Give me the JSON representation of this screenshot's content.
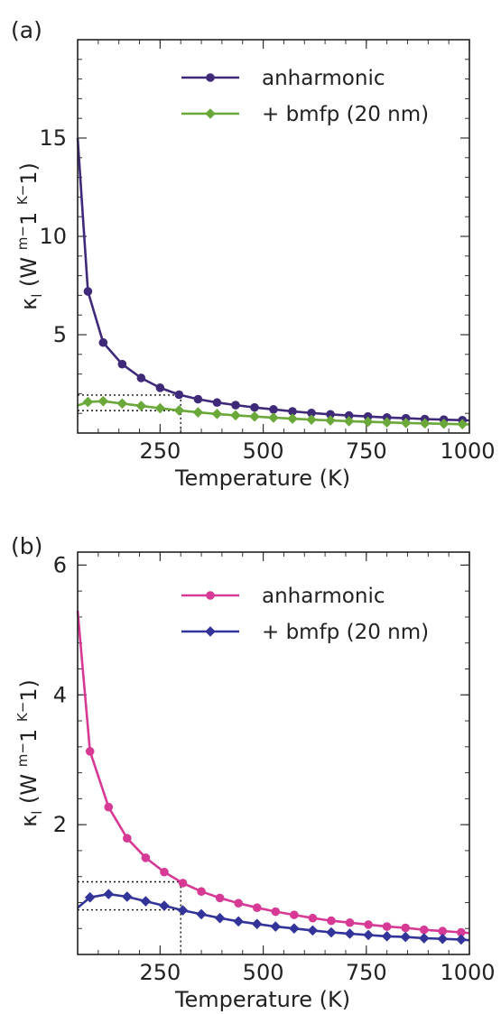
{
  "chart_data": [
    {
      "panel_label": "(a)",
      "type": "line",
      "xlabel": "Temperature (K)",
      "ylabel": "κl (W m−1 K−1)",
      "xlim": [
        50,
        1000
      ],
      "ylim": [
        0,
        20
      ],
      "xticks": [
        250,
        500,
        750,
        1000
      ],
      "yticks": [
        5,
        10,
        15
      ],
      "reference_temperature": 300,
      "legend_position": "top-right",
      "series": [
        {
          "name": "anharmonic",
          "color": "#3f2a7a",
          "marker": "circle",
          "x": [
            50,
            75,
            112,
            158,
            204,
            250,
            296,
            342,
            388,
            433,
            479,
            525,
            571,
            617,
            663,
            708,
            754,
            800,
            846,
            892,
            938,
            983,
            1000
          ],
          "y": [
            15.0,
            7.2,
            4.6,
            3.5,
            2.8,
            2.3,
            1.95,
            1.72,
            1.55,
            1.42,
            1.3,
            1.2,
            1.1,
            1.02,
            0.95,
            0.89,
            0.84,
            0.79,
            0.75,
            0.71,
            0.68,
            0.65,
            0.64
          ]
        },
        {
          "name": "+ bmfp (20 nm)",
          "color": "#6aa83a",
          "marker": "diamond",
          "x": [
            50,
            75,
            112,
            158,
            204,
            250,
            296,
            342,
            388,
            433,
            479,
            525,
            571,
            617,
            663,
            708,
            754,
            800,
            846,
            892,
            938,
            983,
            1000
          ],
          "y": [
            1.4,
            1.58,
            1.62,
            1.5,
            1.38,
            1.26,
            1.15,
            1.05,
            0.97,
            0.9,
            0.84,
            0.78,
            0.73,
            0.68,
            0.64,
            0.6,
            0.57,
            0.54,
            0.51,
            0.49,
            0.47,
            0.45,
            0.44
          ]
        }
      ]
    },
    {
      "panel_label": "(b)",
      "type": "line",
      "xlabel": "Temperature (K)",
      "ylabel": "κl (W m−1 K−1)",
      "xlim": [
        50,
        1000
      ],
      "ylim": [
        0,
        6.2
      ],
      "xticks": [
        250,
        500,
        750,
        1000
      ],
      "yticks": [
        2,
        4,
        6
      ],
      "reference_temperature": 300,
      "legend_position": "top-right",
      "series": [
        {
          "name": "anharmonic",
          "color": "#d63a95",
          "marker": "circle",
          "x": [
            50,
            80,
            125,
            170,
            215,
            260,
            305,
            350,
            395,
            440,
            485,
            530,
            575,
            620,
            665,
            710,
            755,
            800,
            845,
            890,
            935,
            980,
            1000
          ],
          "y": [
            5.3,
            3.13,
            2.27,
            1.79,
            1.49,
            1.27,
            1.1,
            0.97,
            0.87,
            0.79,
            0.72,
            0.66,
            0.61,
            0.56,
            0.52,
            0.49,
            0.46,
            0.43,
            0.41,
            0.38,
            0.36,
            0.34,
            0.33
          ]
        },
        {
          "name": "+ bmfp (20 nm)",
          "color": "#33349a",
          "marker": "diamond",
          "x": [
            50,
            80,
            125,
            170,
            215,
            260,
            305,
            350,
            395,
            440,
            485,
            530,
            575,
            620,
            665,
            710,
            755,
            800,
            845,
            890,
            935,
            980,
            1000
          ],
          "y": [
            0.72,
            0.88,
            0.93,
            0.89,
            0.82,
            0.75,
            0.68,
            0.62,
            0.56,
            0.51,
            0.47,
            0.43,
            0.4,
            0.37,
            0.34,
            0.32,
            0.3,
            0.28,
            0.27,
            0.25,
            0.24,
            0.23,
            0.22
          ]
        }
      ]
    }
  ]
}
